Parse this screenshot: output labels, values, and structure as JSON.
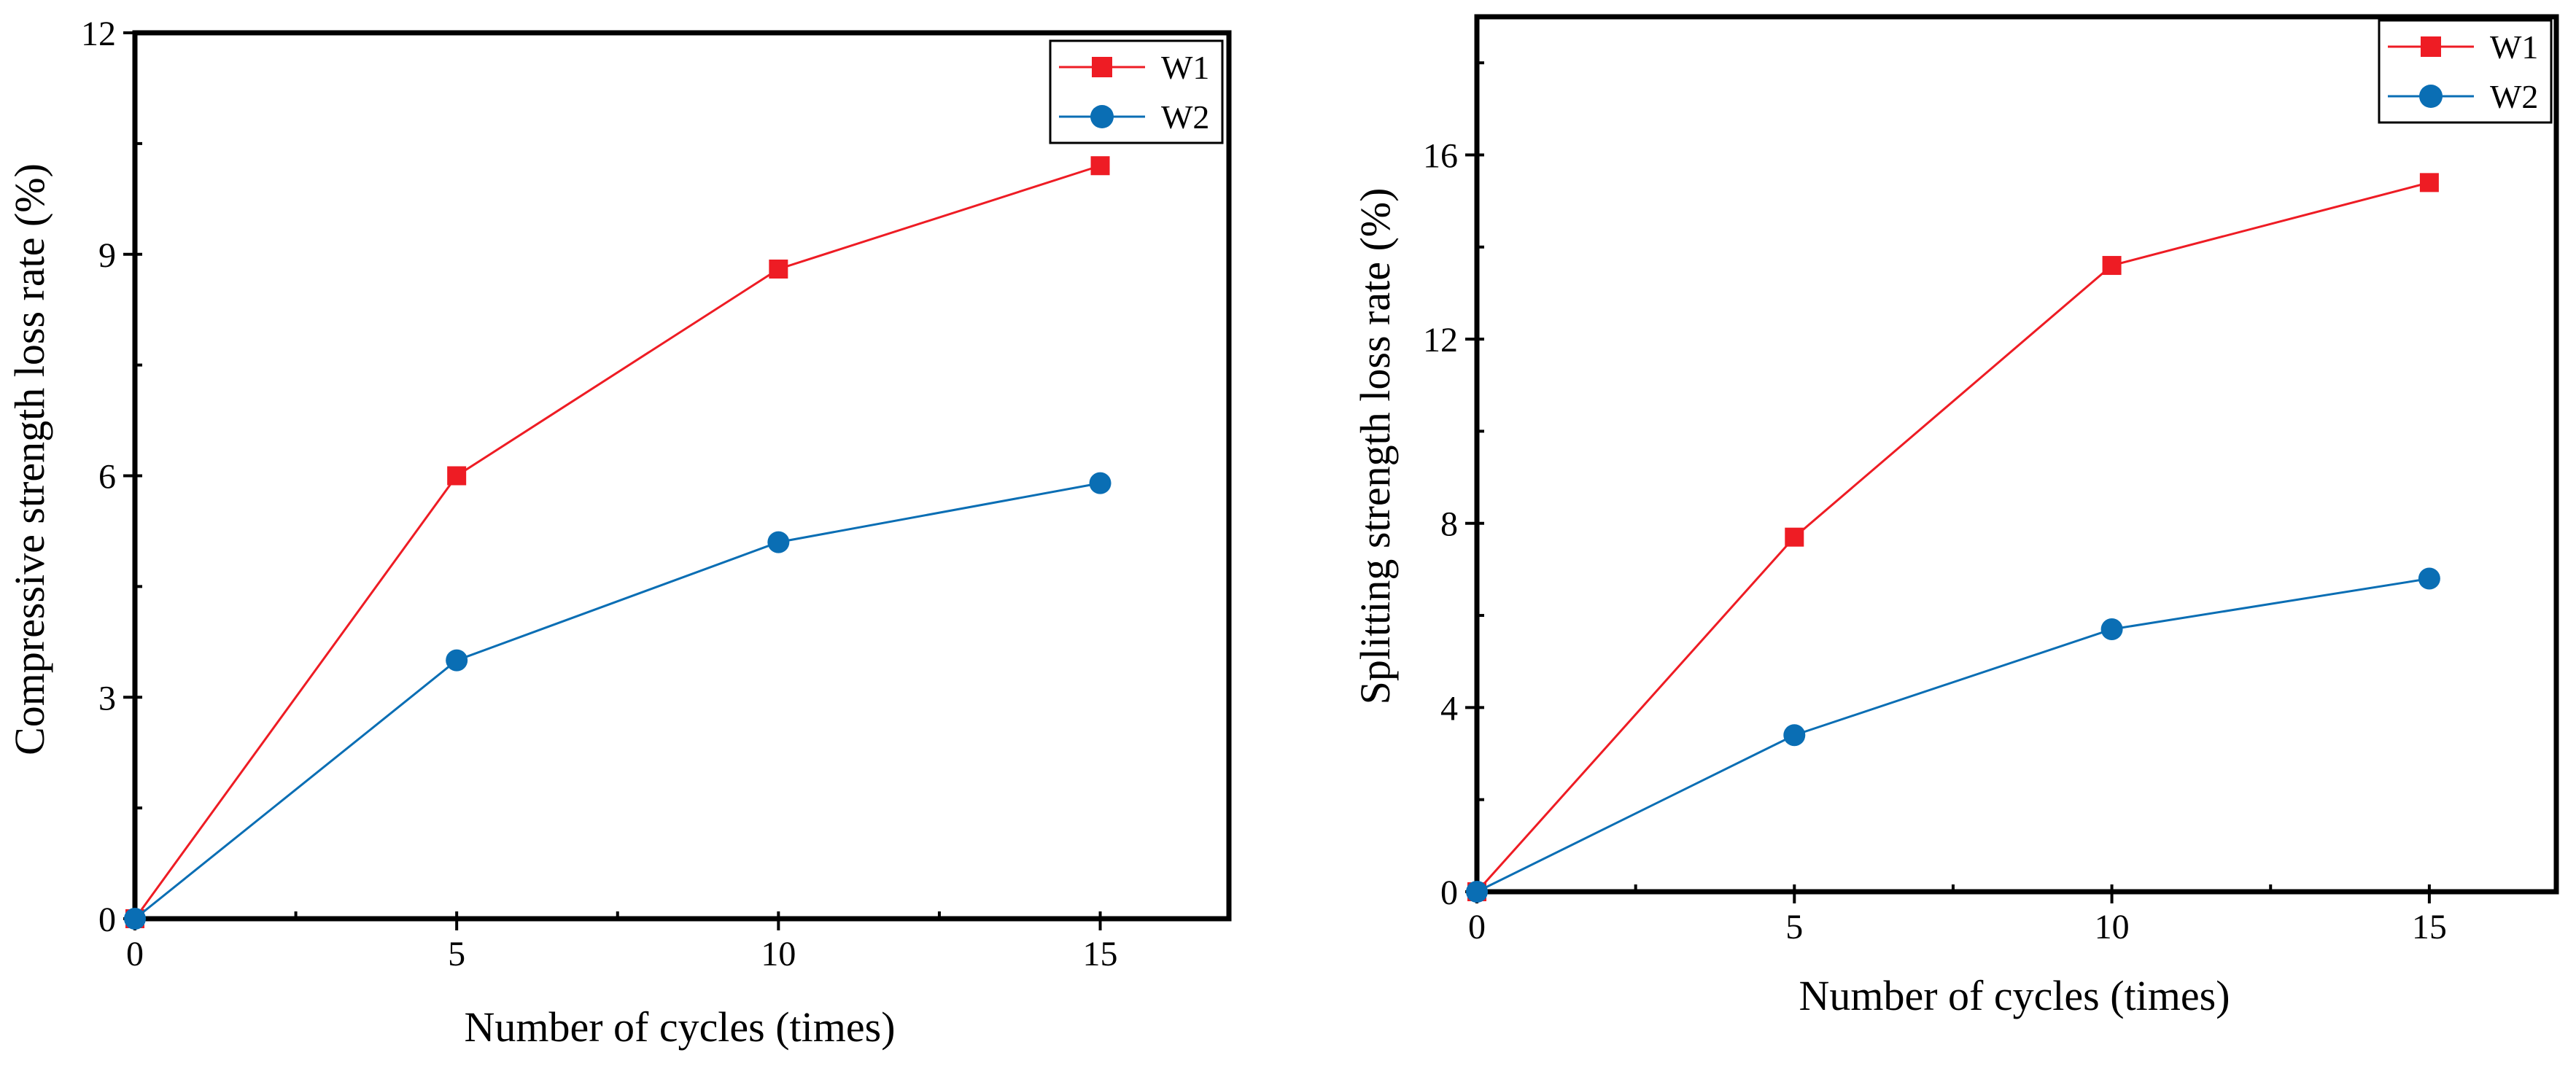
{
  "chart_data": [
    {
      "type": "line",
      "title": "",
      "xlabel": "Number of cycles (times)",
      "ylabel": "Compressive strength loss rate (%)",
      "xlim": [
        0,
        17
      ],
      "ylim": [
        0,
        12
      ],
      "xticks": [
        0,
        5,
        10,
        15
      ],
      "yticks": [
        0,
        3,
        6,
        9,
        12
      ],
      "x": [
        0,
        5,
        10,
        15
      ],
      "legend": "top-right",
      "series": [
        {
          "name": "W1",
          "marker": "square",
          "color": "#ee1c24",
          "values": [
            0,
            6.0,
            8.8,
            10.2
          ]
        },
        {
          "name": "W2",
          "marker": "circle",
          "color": "#0a6eb4",
          "values": [
            0,
            3.5,
            5.1,
            5.9
          ]
        }
      ]
    },
    {
      "type": "line",
      "title": "",
      "xlabel": "Number of cycles (times)",
      "ylabel": "Splitting strength loss rate (%)",
      "xlim": [
        0,
        17
      ],
      "ylim": [
        0,
        19
      ],
      "xticks": [
        0,
        5,
        10,
        15
      ],
      "yticks": [
        0,
        4,
        8,
        12,
        16
      ],
      "x": [
        0,
        5,
        10,
        15
      ],
      "legend": "top-right",
      "series": [
        {
          "name": "W1",
          "marker": "square",
          "color": "#ee1c24",
          "values": [
            0,
            7.7,
            13.6,
            15.4
          ]
        },
        {
          "name": "W2",
          "marker": "circle",
          "color": "#0a6eb4",
          "values": [
            0,
            3.4,
            5.7,
            6.8
          ]
        }
      ]
    }
  ]
}
